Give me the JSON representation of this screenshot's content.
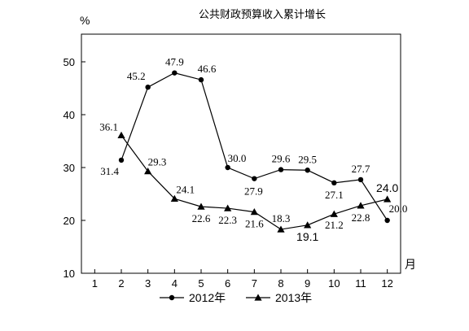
{
  "chart_data": {
    "type": "line",
    "title": "公共财政预算收入累计增长",
    "ylabel": "%",
    "xlabel": "月",
    "ylim": [
      10,
      55
    ],
    "yticks": [
      10,
      20,
      30,
      40,
      50
    ],
    "xlim": [
      0.5,
      12.5
    ],
    "xticks": [
      1,
      2,
      3,
      4,
      5,
      6,
      7,
      8,
      9,
      10,
      11,
      12
    ],
    "grid": false,
    "legend_position": "bottom",
    "series": [
      {
        "name": "2012年",
        "marker": "circle",
        "x": [
          2,
          3,
          4,
          5,
          6,
          7,
          8,
          9,
          10,
          11,
          12
        ],
        "values": [
          31.4,
          45.2,
          47.9,
          46.6,
          30.0,
          27.9,
          29.6,
          29.5,
          27.1,
          27.7,
          20.0
        ],
        "labels": [
          "31.4",
          "45.2",
          "47.9",
          "46.6",
          "30.0",
          "27.9",
          "29.6",
          "29.5",
          "27.1",
          "27.7",
          "20.0"
        ]
      },
      {
        "name": "2013年",
        "marker": "triangle",
        "x": [
          2,
          3,
          4,
          5,
          6,
          7,
          8,
          9,
          10,
          11,
          12
        ],
        "values": [
          36.1,
          29.3,
          24.1,
          22.6,
          22.3,
          21.6,
          18.3,
          19.1,
          21.2,
          22.8,
          24.0
        ],
        "labels": [
          "36.1",
          "29.3",
          "24.1",
          "22.6",
          "22.3",
          "21.6",
          "18.3",
          "19.1",
          "21.2",
          "22.8",
          "24.0"
        ]
      }
    ]
  }
}
